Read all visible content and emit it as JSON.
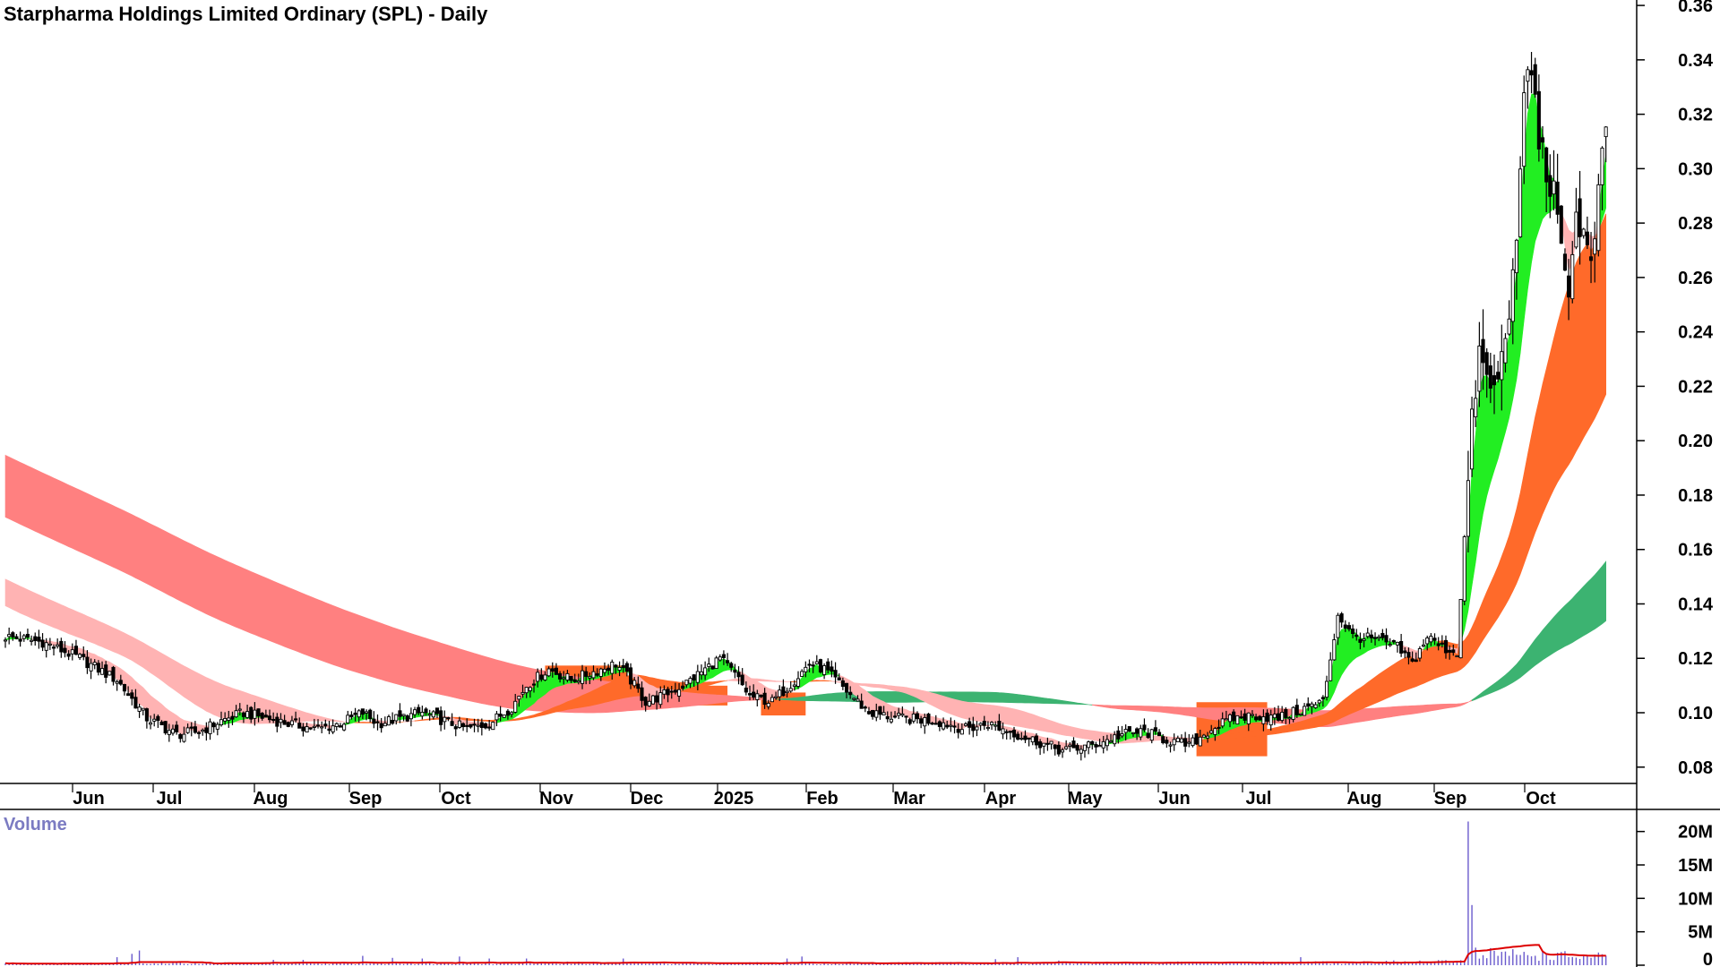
{
  "chart_data": {
    "type": "candlestick",
    "title": "Starpharma Holdings Limited Ordinary (SPL) - Daily",
    "price_axis": {
      "ticks": [
        "0.08",
        "0.10",
        "0.12",
        "0.14",
        "0.16",
        "0.18",
        "0.20",
        "0.22",
        "0.24",
        "0.26",
        "0.28",
        "0.30",
        "0.32",
        "0.34",
        "0.36"
      ],
      "ylim": [
        0.074,
        0.362
      ]
    },
    "x_axis": {
      "ticks": [
        "Jun",
        "Jul",
        "Aug",
        "Sep",
        "Oct",
        "Nov",
        "Dec",
        "2025",
        "Feb",
        "Mar",
        "Apr",
        "May",
        "Jun",
        "Jul",
        "Aug",
        "Sep",
        "Oct"
      ]
    },
    "volume_axis": {
      "label": "Volume",
      "ticks": [
        "0",
        "5M",
        "10M",
        "15M",
        "20M"
      ],
      "ylim": [
        0,
        22.5
      ]
    },
    "colors": {
      "long_band_down": "#ff8080",
      "long_band_up": "#3cb371",
      "mid_band_up": "#ff6a2a",
      "short_band_up": "#22ee22",
      "short_band_down": "#ffb3b3",
      "highlight_zone": "#ff6a2a",
      "candle": "#000000",
      "volume_bar": "#6a5acd",
      "volume_ma": "#dd0000"
    },
    "price_anchors": [
      [
        0,
        0.128
      ],
      [
        10,
        0.126
      ],
      [
        20,
        0.12
      ],
      [
        30,
        0.112
      ],
      [
        38,
        0.098
      ],
      [
        46,
        0.092
      ],
      [
        52,
        0.093
      ],
      [
        58,
        0.097
      ],
      [
        64,
        0.1
      ],
      [
        70,
        0.098
      ],
      [
        76,
        0.096
      ],
      [
        84,
        0.094
      ],
      [
        90,
        0.096
      ],
      [
        96,
        0.1
      ],
      [
        100,
        0.096
      ],
      [
        106,
        0.098
      ],
      [
        112,
        0.1
      ],
      [
        118,
        0.097
      ],
      [
        124,
        0.094
      ],
      [
        130,
        0.096
      ],
      [
        136,
        0.102
      ],
      [
        140,
        0.11
      ],
      [
        146,
        0.116
      ],
      [
        152,
        0.112
      ],
      [
        158,
        0.115
      ],
      [
        164,
        0.118
      ],
      [
        168,
        0.112
      ],
      [
        172,
        0.104
      ],
      [
        176,
        0.106
      ],
      [
        182,
        0.11
      ],
      [
        188,
        0.116
      ],
      [
        192,
        0.12
      ],
      [
        196,
        0.114
      ],
      [
        200,
        0.106
      ],
      [
        206,
        0.104
      ],
      [
        212,
        0.112
      ],
      [
        216,
        0.118
      ],
      [
        220,
        0.116
      ],
      [
        226,
        0.108
      ],
      [
        232,
        0.1
      ],
      [
        240,
        0.098
      ],
      [
        250,
        0.097
      ],
      [
        258,
        0.094
      ],
      [
        264,
        0.096
      ],
      [
        270,
        0.093
      ],
      [
        276,
        0.09
      ],
      [
        284,
        0.086
      ],
      [
        292,
        0.088
      ],
      [
        300,
        0.092
      ],
      [
        306,
        0.093
      ],
      [
        312,
        0.09
      ],
      [
        318,
        0.088
      ],
      [
        324,
        0.094
      ],
      [
        330,
        0.098
      ],
      [
        336,
        0.099
      ],
      [
        342,
        0.098
      ],
      [
        346,
        0.1
      ],
      [
        350,
        0.102
      ],
      [
        354,
        0.104
      ],
      [
        358,
        0.136
      ],
      [
        362,
        0.128
      ],
      [
        368,
        0.127
      ],
      [
        374,
        0.124
      ],
      [
        378,
        0.118
      ],
      [
        382,
        0.128
      ],
      [
        386,
        0.124
      ],
      [
        390,
        0.122
      ],
      [
        394,
        0.206
      ],
      [
        396,
        0.232
      ],
      [
        398,
        0.222
      ],
      [
        400,
        0.218
      ],
      [
        402,
        0.23
      ],
      [
        404,
        0.25
      ],
      [
        406,
        0.268
      ],
      [
        408,
        0.33
      ],
      [
        410,
        0.336
      ],
      [
        412,
        0.312
      ],
      [
        414,
        0.298
      ],
      [
        416,
        0.29
      ],
      [
        418,
        0.268
      ],
      [
        420,
        0.258
      ],
      [
        422,
        0.282
      ],
      [
        424,
        0.276
      ],
      [
        426,
        0.262
      ],
      [
        428,
        0.29
      ],
      [
        430,
        0.314
      ]
    ],
    "zones": [
      [
        145,
        167
      ],
      [
        180,
        194
      ],
      [
        203,
        215
      ],
      [
        320,
        339
      ]
    ],
    "volume_anchors": [
      [
        0,
        0.25
      ],
      [
        50,
        0.3
      ],
      [
        100,
        0.3
      ],
      [
        150,
        0.35
      ],
      [
        200,
        0.3
      ],
      [
        250,
        0.3
      ],
      [
        300,
        0.35
      ],
      [
        350,
        0.4
      ],
      [
        390,
        0.5
      ],
      [
        394,
        2
      ],
      [
        410,
        1.5
      ],
      [
        430,
        1.2
      ]
    ],
    "volume_spikes": [
      [
        30,
        1.2
      ],
      [
        34,
        1.7
      ],
      [
        36,
        2.2
      ],
      [
        72,
        0.8
      ],
      [
        80,
        0.8
      ],
      [
        96,
        1.4
      ],
      [
        104,
        1.1
      ],
      [
        112,
        1.0
      ],
      [
        122,
        1.3
      ],
      [
        130,
        1.0
      ],
      [
        140,
        1.0
      ],
      [
        166,
        1.0
      ],
      [
        210,
        1.0
      ],
      [
        214,
        1.3
      ],
      [
        266,
        0.9
      ],
      [
        272,
        1.2
      ],
      [
        283,
        0.7
      ],
      [
        348,
        1.2
      ],
      [
        393,
        21.5
      ],
      [
        394,
        9.0
      ],
      [
        397,
        1.5
      ],
      [
        402,
        2.0
      ],
      [
        404,
        1.4
      ]
    ]
  }
}
